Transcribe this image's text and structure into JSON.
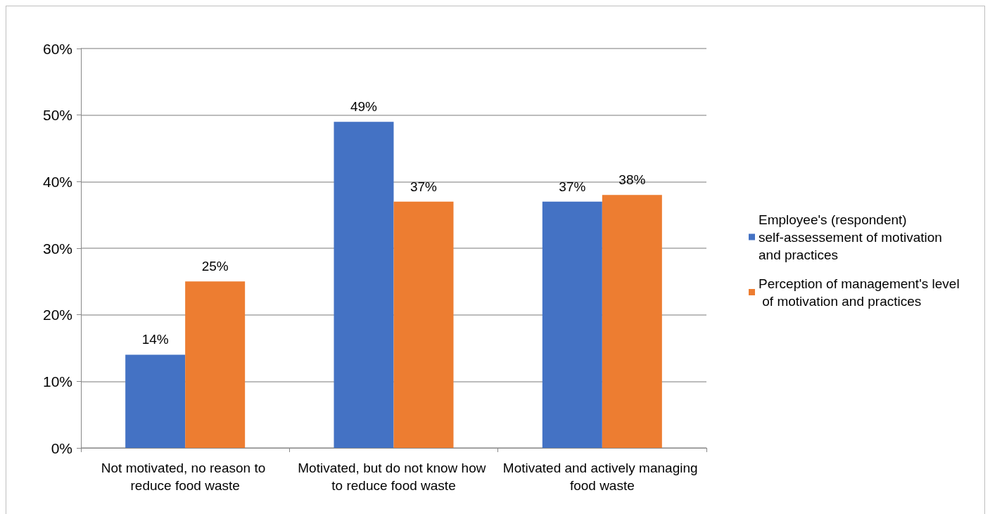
{
  "chart_data": {
    "type": "bar",
    "categories": [
      "Not motivated, no reason to reduce food waste",
      "Motivated, but do not know how to reduce food waste",
      "Motivated and actively managing food waste"
    ],
    "series": [
      {
        "name": "Employee's (respondent) self-assessement of motivation and practices",
        "color": "#4472c4",
        "values": [
          14,
          49,
          37
        ],
        "value_labels": [
          "14%",
          "49%",
          "37%"
        ]
      },
      {
        "name": "Perception of management's level of motivation and practices",
        "color": "#ed7d31",
        "values": [
          25,
          37,
          38
        ],
        "value_labels": [
          "25%",
          "37%",
          "38%"
        ]
      }
    ],
    "ylim": [
      0,
      60
    ],
    "yticks": [
      {
        "value": 0,
        "label": "0%"
      },
      {
        "value": 10,
        "label": "10%"
      },
      {
        "value": 20,
        "label": "20%"
      },
      {
        "value": 30,
        "label": "30%"
      },
      {
        "value": 40,
        "label": "40%"
      },
      {
        "value": 50,
        "label": "50%"
      },
      {
        "value": 60,
        "label": "60%"
      }
    ],
    "grid": "y",
    "legend": "right"
  }
}
